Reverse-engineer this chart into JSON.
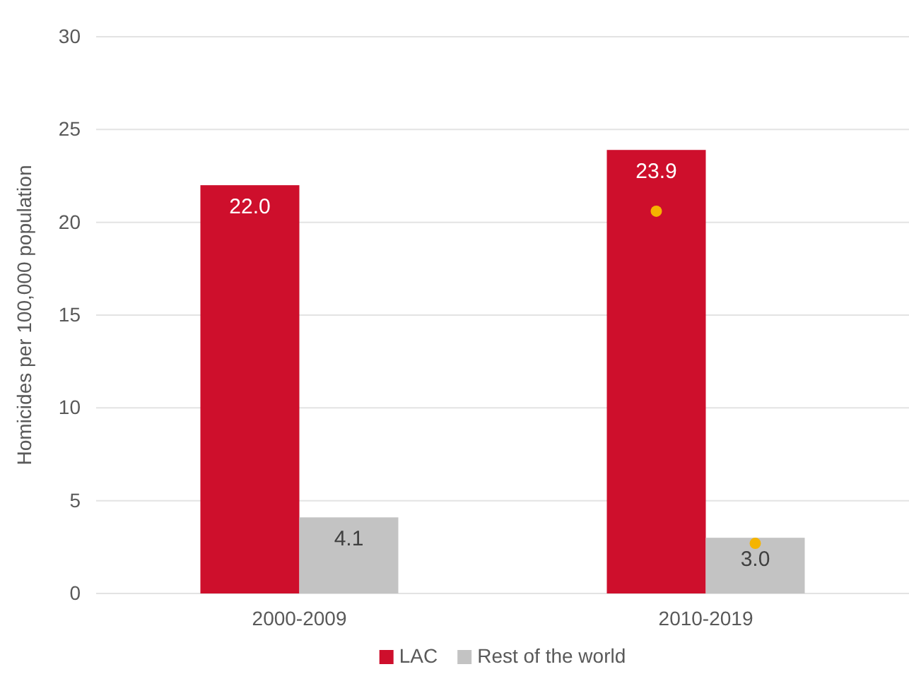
{
  "chart_data": {
    "type": "bar",
    "ylabel": "Homicides per 100,000 population",
    "categories": [
      "2000-2009",
      "2010-2019"
    ],
    "series": [
      {
        "name": "LAC",
        "color": "#ce0f2c",
        "values": [
          22.0,
          23.9
        ],
        "value_labels": [
          "22.0",
          "23.9"
        ]
      },
      {
        "name": "Rest of the world",
        "color": "#c3c3c3",
        "values": [
          4.1,
          3.0
        ],
        "value_labels": [
          "4.1",
          "3.0"
        ]
      },
      {
        "type": "scatter",
        "color": "#f5b400",
        "x": [
          "2010-2019"
        ],
        "values": [
          20.6
        ]
      },
      {
        "type": "scatter",
        "color": "#f5b400",
        "x": [
          "2010-2019"
        ],
        "values": [
          2.7
        ]
      }
    ],
    "ylim": [
      0,
      30
    ],
    "yticks": [
      0,
      5,
      10,
      15,
      20,
      25,
      30
    ],
    "grid": "y",
    "legend": "bottom",
    "marker": "circle"
  }
}
